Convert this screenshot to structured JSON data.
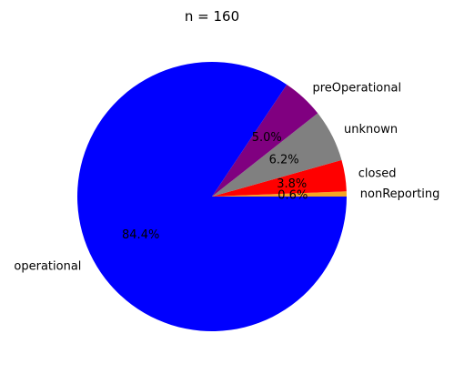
{
  "chart_data": {
    "type": "pie",
    "title": "n = 160",
    "slices": [
      {
        "label": "nonReporting",
        "value": 1,
        "percent_label": "0.6%",
        "color": "#f5a623"
      },
      {
        "label": "closed",
        "value": 6,
        "percent_label": "3.8%",
        "color": "#ff0000"
      },
      {
        "label": "unknown",
        "value": 10,
        "percent_label": "6.2%",
        "color": "#808080"
      },
      {
        "label": "preOperational",
        "value": 8,
        "percent_label": "5.0%",
        "color": "#800080"
      },
      {
        "label": "operational",
        "value": 135,
        "percent_label": "84.4%",
        "color": "#0000ff"
      }
    ]
  }
}
